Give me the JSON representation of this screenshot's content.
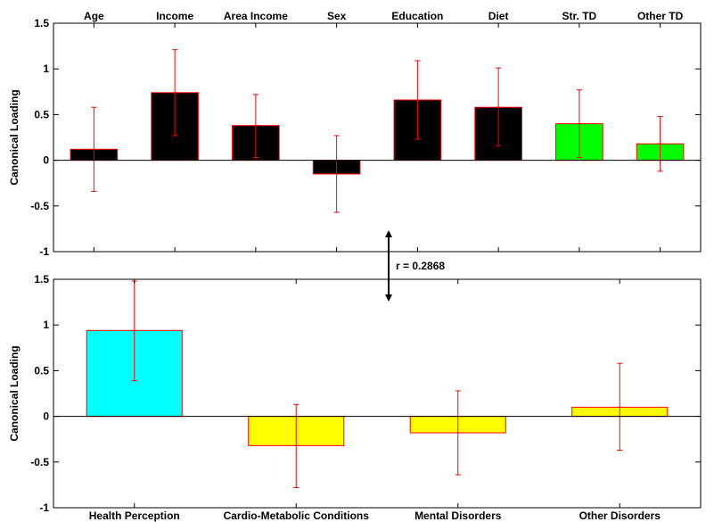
{
  "chart_data": [
    {
      "type": "bar",
      "categories": [
        "Age",
        "Income",
        "Area Income",
        "Sex",
        "Education",
        "Diet",
        "Str. TD",
        "Other TD"
      ],
      "values": [
        0.12,
        0.74,
        0.38,
        -0.15,
        0.66,
        0.58,
        0.4,
        0.18
      ],
      "error_low": [
        -0.34,
        0.27,
        0.03,
        -0.57,
        0.23,
        0.16,
        0.03,
        -0.12
      ],
      "error_high": [
        0.58,
        1.21,
        0.72,
        0.27,
        1.09,
        1.01,
        0.77,
        0.48
      ],
      "bar_colors": [
        "#000000",
        "#000000",
        "#000000",
        "#000000",
        "#000000",
        "#000000",
        "#00ff00",
        "#00ff00"
      ],
      "bar_edge_color": "#ff0000",
      "error_color": "#ff0000",
      "ylabel": "Canonical Loading",
      "ylim": [
        -1,
        1.5
      ],
      "yticks": [
        -1,
        -0.5,
        0,
        0.5,
        1,
        1.5
      ],
      "ytick_labels": [
        "-1",
        "-0.5",
        "0",
        "0.5",
        "1",
        "1.5"
      ],
      "category_label_position": "top"
    },
    {
      "type": "bar",
      "categories": [
        "Health Perception",
        "Cardio-Metabolic Conditions",
        "Mental Disorders",
        "Other Disorders"
      ],
      "values": [
        0.94,
        -0.32,
        -0.18,
        0.1
      ],
      "error_low": [
        0.39,
        -0.78,
        -0.64,
        -0.37
      ],
      "error_high": [
        1.48,
        0.13,
        0.28,
        0.58
      ],
      "bar_colors": [
        "#00ffff",
        "#ffff00",
        "#ffff00",
        "#ffff00"
      ],
      "bar_edge_color": "#ff0000",
      "error_color": "#ff0000",
      "ylabel": "Canonical Loading",
      "ylim": [
        -1,
        1.5
      ],
      "yticks": [
        -1,
        -0.5,
        0,
        0.5,
        1,
        1.5
      ],
      "ytick_labels": [
        "-1",
        "-0.5",
        "0",
        "0.5",
        "1",
        "1.5"
      ],
      "category_label_position": "bottom"
    }
  ],
  "correlation_label": "r = 0.2868"
}
